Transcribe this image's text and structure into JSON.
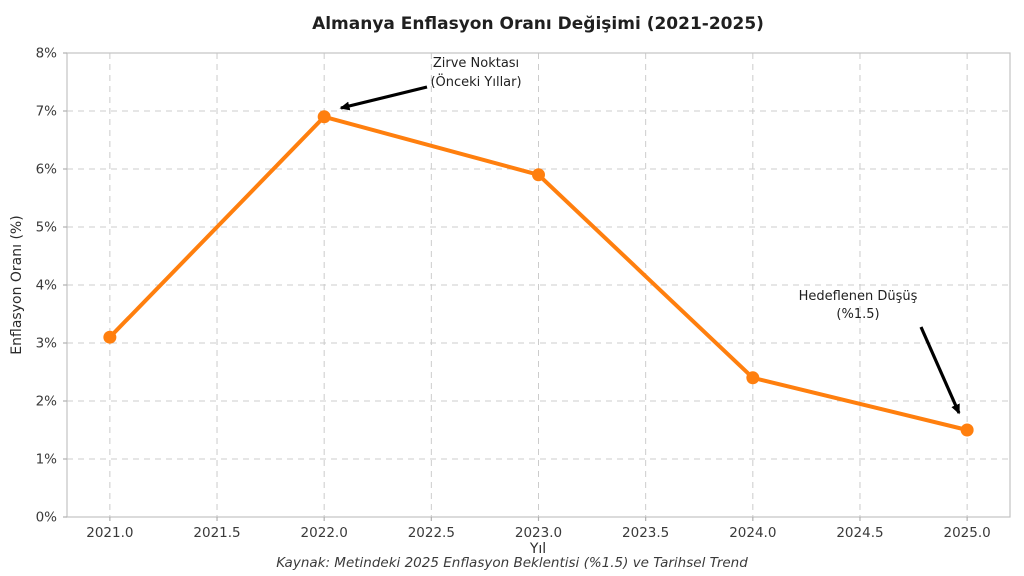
{
  "chart_data": {
    "type": "line",
    "title": "Almanya Enflasyon Oranı Değişimi (2021-2025)",
    "xlabel": "Yıl",
    "ylabel": "Enflasyon Oranı (%)",
    "caption": "Kaynak: Metindeki 2025 Enflasyon Beklentisi (%1.5) ve Tarihsel Trend",
    "x": [
      2021,
      2022,
      2023,
      2024,
      2025
    ],
    "series": [
      {
        "name": "Enflasyon Oranı",
        "values": [
          3.1,
          6.9,
          5.9,
          2.4,
          1.5
        ],
        "color": "#ff7f0e"
      }
    ],
    "xlim": [
      2020.8,
      2025.2
    ],
    "ylim": [
      0,
      8
    ],
    "xticks": {
      "values": [
        2021.0,
        2021.5,
        2022.0,
        2022.5,
        2023.0,
        2023.5,
        2024.0,
        2024.5,
        2025.0
      ],
      "labels": [
        "2021.0",
        "2021.5",
        "2022.0",
        "2022.5",
        "2023.0",
        "2023.5",
        "2024.0",
        "2024.5",
        "2025.0"
      ]
    },
    "yticks": {
      "values": [
        0,
        1,
        2,
        3,
        4,
        5,
        6,
        7,
        8
      ],
      "labels": [
        "0%",
        "1%",
        "2%",
        "3%",
        "4%",
        "5%",
        "6%",
        "7%",
        "8%"
      ]
    },
    "grid": true,
    "legend": "none",
    "marker_radius": 6.5,
    "line_width": 4,
    "annotations": [
      {
        "name": "peak",
        "lines": [
          "Zirve Noktası",
          "(Önceki Yıllar)"
        ],
        "target_x": 2022,
        "target_y": 6.9
      },
      {
        "name": "targeted-drop",
        "lines": [
          "Hedeflenen Düşüş",
          "(%1.5)"
        ],
        "target_x": 2025,
        "target_y": 1.5
      }
    ],
    "colors": {
      "line": "#ff7f0e",
      "grid": "#cccccc",
      "plot_border": "#c3c3c3",
      "arrow": "#000000",
      "title_text": "#1f1f1f",
      "tick_text": "#3a3a3a",
      "background": "#ffffff"
    }
  }
}
